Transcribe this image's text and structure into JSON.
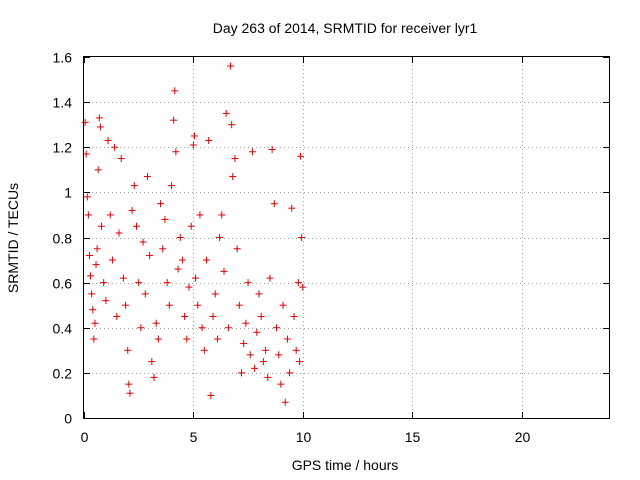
{
  "chart_data": {
    "type": "scatter",
    "title": "Day 263 of 2014, SRMTID for receiver lyr1",
    "xlabel": "GPS time / hours",
    "ylabel": "SRMTID / TECUs",
    "xlim": [
      0,
      24
    ],
    "ylim": [
      0,
      1.6
    ],
    "x_ticks": [
      0,
      5,
      10,
      15,
      20
    ],
    "y_ticks": [
      0,
      0.2,
      0.4,
      0.6,
      0.8,
      1,
      1.2,
      1.4,
      1.6
    ],
    "x_tick_labels": [
      "0",
      "5",
      "10",
      "15",
      "20"
    ],
    "y_tick_labels": [
      "0",
      "0.2",
      "0.4",
      "0.6",
      "0.8",
      "1",
      "1.2",
      "1.4",
      "1.6"
    ],
    "grid": true,
    "marker": "plus",
    "series_color": "#e00000",
    "series": [
      {
        "name": "SRMTID",
        "points": [
          [
            0.05,
            1.31
          ],
          [
            0.1,
            1.17
          ],
          [
            0.15,
            0.98
          ],
          [
            0.2,
            0.9
          ],
          [
            0.25,
            0.72
          ],
          [
            0.3,
            0.63
          ],
          [
            0.35,
            0.55
          ],
          [
            0.4,
            0.48
          ],
          [
            0.45,
            0.35
          ],
          [
            0.5,
            0.42
          ],
          [
            0.55,
            0.68
          ],
          [
            0.6,
            0.75
          ],
          [
            0.65,
            1.1
          ],
          [
            0.7,
            1.33
          ],
          [
            0.75,
            1.29
          ],
          [
            0.8,
            0.85
          ],
          [
            0.9,
            0.6
          ],
          [
            1.0,
            0.52
          ],
          [
            1.1,
            1.23
          ],
          [
            1.2,
            0.9
          ],
          [
            1.3,
            0.7
          ],
          [
            1.4,
            1.2
          ],
          [
            1.5,
            0.45
          ],
          [
            1.6,
            0.82
          ],
          [
            1.7,
            1.15
          ],
          [
            1.8,
            0.62
          ],
          [
            1.9,
            0.5
          ],
          [
            2.0,
            0.3
          ],
          [
            2.05,
            0.15
          ],
          [
            2.1,
            0.11
          ],
          [
            2.2,
            0.92
          ],
          [
            2.3,
            1.03
          ],
          [
            2.4,
            0.85
          ],
          [
            2.5,
            0.6
          ],
          [
            2.6,
            0.4
          ],
          [
            2.7,
            0.78
          ],
          [
            2.8,
            0.55
          ],
          [
            2.9,
            1.07
          ],
          [
            3.0,
            0.72
          ],
          [
            3.1,
            0.25
          ],
          [
            3.2,
            0.18
          ],
          [
            3.3,
            0.42
          ],
          [
            3.4,
            0.35
          ],
          [
            3.5,
            0.95
          ],
          [
            3.6,
            0.75
          ],
          [
            3.7,
            0.88
          ],
          [
            3.8,
            0.6
          ],
          [
            3.9,
            0.5
          ],
          [
            4.0,
            1.03
          ],
          [
            4.1,
            1.32
          ],
          [
            4.15,
            1.45
          ],
          [
            4.2,
            1.18
          ],
          [
            4.3,
            0.66
          ],
          [
            4.4,
            0.8
          ],
          [
            4.5,
            0.7
          ],
          [
            4.6,
            0.45
          ],
          [
            4.7,
            0.35
          ],
          [
            4.8,
            0.58
          ],
          [
            4.9,
            0.85
          ],
          [
            5.0,
            1.21
          ],
          [
            5.05,
            1.25
          ],
          [
            5.1,
            0.62
          ],
          [
            5.2,
            0.5
          ],
          [
            5.3,
            0.9
          ],
          [
            5.4,
            0.4
          ],
          [
            5.5,
            0.3
          ],
          [
            5.6,
            0.7
          ],
          [
            5.7,
            1.23
          ],
          [
            5.8,
            0.1
          ],
          [
            5.9,
            0.45
          ],
          [
            6.0,
            0.55
          ],
          [
            6.1,
            0.35
          ],
          [
            6.2,
            0.8
          ],
          [
            6.3,
            0.9
          ],
          [
            6.4,
            0.65
          ],
          [
            6.5,
            1.35
          ],
          [
            6.6,
            0.4
          ],
          [
            6.7,
            1.56
          ],
          [
            6.75,
            1.3
          ],
          [
            6.8,
            1.07
          ],
          [
            6.9,
            1.15
          ],
          [
            7.0,
            0.75
          ],
          [
            7.1,
            0.5
          ],
          [
            7.2,
            0.2
          ],
          [
            7.3,
            0.33
          ],
          [
            7.4,
            0.42
          ],
          [
            7.5,
            0.6
          ],
          [
            7.6,
            0.28
          ],
          [
            7.7,
            1.18
          ],
          [
            7.8,
            0.22
          ],
          [
            7.9,
            0.38
          ],
          [
            8.0,
            0.55
          ],
          [
            8.1,
            0.45
          ],
          [
            8.2,
            0.25
          ],
          [
            8.3,
            0.3
          ],
          [
            8.4,
            0.18
          ],
          [
            8.5,
            0.62
          ],
          [
            8.6,
            1.19
          ],
          [
            8.7,
            0.95
          ],
          [
            8.8,
            0.4
          ],
          [
            8.9,
            0.28
          ],
          [
            9.0,
            0.15
          ],
          [
            9.1,
            0.5
          ],
          [
            9.2,
            0.07
          ],
          [
            9.3,
            0.35
          ],
          [
            9.4,
            0.2
          ],
          [
            9.5,
            0.93
          ],
          [
            9.6,
            0.45
          ],
          [
            9.7,
            0.3
          ],
          [
            9.8,
            0.6
          ],
          [
            9.85,
            0.25
          ],
          [
            9.9,
            1.16
          ],
          [
            9.95,
            0.8
          ],
          [
            10.0,
            0.58
          ]
        ]
      }
    ]
  }
}
